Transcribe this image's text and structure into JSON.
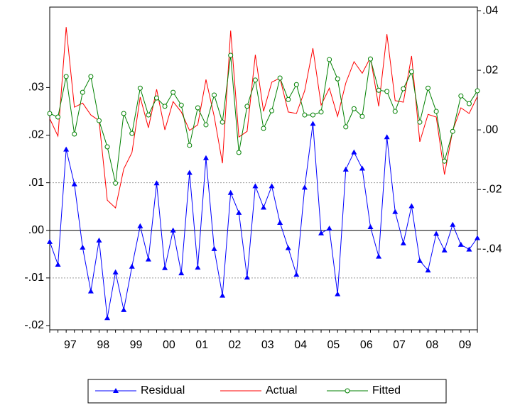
{
  "chart_data": {
    "type": "line",
    "categories": [
      null,
      null,
      "97",
      null,
      null,
      null,
      "98",
      null,
      null,
      null,
      "99",
      null,
      null,
      null,
      "00",
      null,
      null,
      null,
      "01",
      null,
      null,
      null,
      "02",
      null,
      null,
      null,
      "03",
      null,
      null,
      null,
      "04",
      null,
      null,
      null,
      "05",
      null,
      null,
      null,
      "06",
      null,
      null,
      null,
      "07",
      null,
      null,
      null,
      "08",
      null,
      null,
      null,
      "09",
      null,
      null
    ],
    "series": [
      {
        "name": "Residual",
        "color": "#0000ff",
        "marker": "triangle",
        "axis": "y",
        "values": [
          -0.0024,
          -0.0072,
          0.017,
          0.0097,
          -0.0036,
          -0.0128,
          -0.0021,
          -0.0184,
          -0.0088,
          -0.0167,
          -0.0076,
          0.0009,
          -0.0061,
          0.0099,
          -0.0079,
          0.0,
          -0.009,
          0.0121,
          -0.0078,
          0.0152,
          -0.0039,
          -0.0137,
          0.0079,
          0.0037,
          -0.0099,
          0.0093,
          0.0048,
          0.0093,
          0.0016,
          -0.0037,
          -0.0093,
          0.009,
          0.0224,
          -0.0006,
          0.0004,
          -0.0134,
          0.0128,
          0.0164,
          0.013,
          0.0007,
          -0.0055,
          0.0196,
          0.0039,
          -0.0027,
          0.0051,
          -0.0064,
          -0.0084,
          -0.0007,
          -0.0042,
          0.0012,
          -0.003,
          -0.004,
          -0.0016
        ]
      },
      {
        "name": "Actual",
        "color": "#ff0000",
        "marker": "none",
        "axis": "y2",
        "values": [
          0.0038,
          -0.0021,
          0.0345,
          0.0076,
          0.009,
          0.005,
          0.0031,
          -0.0236,
          -0.0262,
          -0.0131,
          -0.0076,
          0.011,
          0.0007,
          0.0136,
          0.0,
          0.0095,
          0.006,
          -0.0002,
          0.0017,
          0.0169,
          0.0045,
          -0.0112,
          0.0333,
          -0.0024,
          -0.0005,
          0.0252,
          0.0062,
          0.016,
          0.0174,
          0.006,
          0.0055,
          0.0131,
          0.0274,
          0.0083,
          0.014,
          0.0045,
          0.0157,
          0.0229,
          0.019,
          0.0243,
          0.0079,
          0.0321,
          0.0098,
          0.0093,
          0.0248,
          -0.004,
          0.0052,
          0.0043,
          -0.015,
          -0.0002,
          0.0074,
          0.0055,
          0.0112
        ]
      },
      {
        "name": "Fitted",
        "color": "#008000",
        "marker": "circle",
        "axis": "y2",
        "values": [
          0.0055,
          0.0043,
          0.0179,
          -0.0014,
          0.0126,
          0.0179,
          0.0031,
          -0.0057,
          -0.0179,
          0.0055,
          -0.0012,
          0.014,
          0.005,
          0.0107,
          0.0079,
          0.0126,
          0.0083,
          -0.0052,
          0.0074,
          0.0017,
          0.0117,
          0.0026,
          0.025,
          -0.0076,
          0.0079,
          0.0167,
          0.0005,
          0.0064,
          0.0174,
          0.0102,
          0.0152,
          0.005,
          0.005,
          0.006,
          0.0236,
          0.0171,
          0.001,
          0.0071,
          0.0045,
          0.0238,
          0.0133,
          0.0129,
          0.0062,
          0.0138,
          0.0195,
          0.0026,
          0.014,
          0.0062,
          -0.0105,
          -0.0005,
          0.0114,
          0.0088,
          0.0131
        ]
      }
    ],
    "ylim": [
      -0.0209,
      0.0469
    ],
    "yticks": [
      {
        "value": -0.02,
        "label": "-.02"
      },
      {
        "value": -0.01,
        "label": "-.01"
      },
      {
        "value": 0,
        "label": ".00"
      },
      {
        "value": 0.01,
        "label": ".01"
      },
      {
        "value": 0.02,
        "label": ".02"
      },
      {
        "value": 0.03,
        "label": ".03"
      }
    ],
    "y2lim": [
      -0.0671,
      0.0412
    ],
    "y2ticks": [
      {
        "value": -0.04,
        "label": "-.04"
      },
      {
        "value": -0.02,
        "label": "-.02"
      },
      {
        "value": 0,
        "label": ".00"
      },
      {
        "value": 0.02,
        "label": ".02"
      },
      {
        "value": 0.04,
        "label": ".04"
      }
    ],
    "reference_lines": [
      -0.01,
      0,
      0.01
    ],
    "legend": "bottom"
  }
}
